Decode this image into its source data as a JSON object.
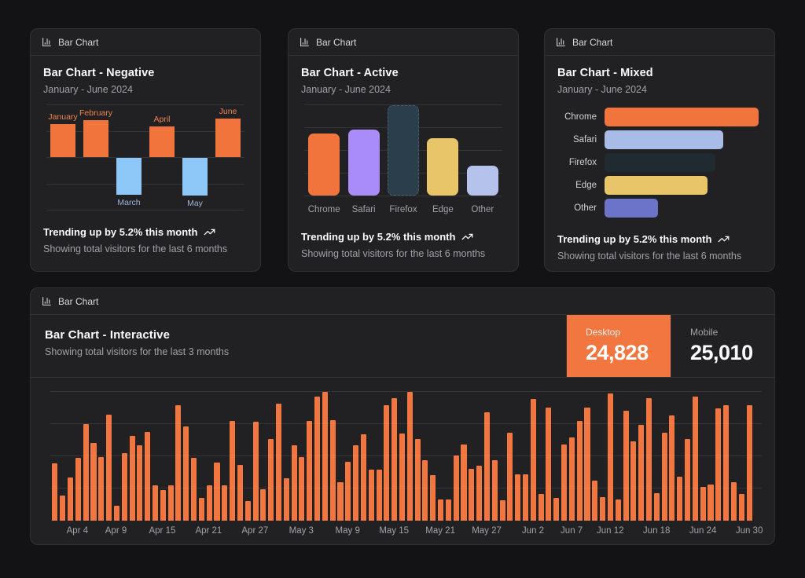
{
  "page": {
    "background": "#131316",
    "accent_orange": "#f2763f"
  },
  "cards": {
    "negative": {
      "header": "Bar Chart",
      "title": "Bar Chart - Negative",
      "subtitle": "January - June 2024",
      "footer_bold": "Trending up by 5.2% this month",
      "footer_muted": "Showing total visitors for the last 6 months"
    },
    "active": {
      "header": "Bar Chart",
      "title": "Bar Chart - Active",
      "subtitle": "January - June 2024",
      "footer_bold": "Trending up by 5.2% this month",
      "footer_muted": "Showing total visitors for the last 6 months"
    },
    "mixed": {
      "header": "Bar Chart",
      "title": "Bar Chart - Mixed",
      "subtitle": "January - June 2024",
      "footer_bold": "Trending up by 5.2% this month",
      "footer_muted": "Showing total visitors for the last 6 months"
    },
    "interactive": {
      "header": "Bar Chart",
      "title": "Bar Chart - Interactive",
      "subtitle": "Showing total visitors for the last 3 months",
      "toggles": [
        {
          "label": "Desktop",
          "value": "24,828",
          "active": true
        },
        {
          "label": "Mobile",
          "value": "25,010",
          "active": false
        }
      ]
    }
  },
  "chart_data": [
    {
      "type": "bar",
      "variant": "negative",
      "title": "Bar Chart - Negative",
      "categories": [
        "January",
        "February",
        "March",
        "April",
        "May",
        "June"
      ],
      "values": [
        186,
        205,
        -207,
        173,
        -209,
        214
      ],
      "ylim": [
        -250,
        250
      ],
      "positive_color": "#f2743d",
      "negative_color": "#8ec8f8",
      "positive_label_color": "#ef8350",
      "negative_label_color": "#9bb2d8",
      "grid": true
    },
    {
      "type": "bar",
      "variant": "vertical",
      "title": "Bar Chart - Active",
      "categories": [
        "Chrome",
        "Safari",
        "Firefox",
        "Edge",
        "Other"
      ],
      "values": [
        187,
        200,
        275,
        173,
        90
      ],
      "colors": [
        "#f2743d",
        "#a98bfa",
        "#2a3e4c",
        "#e9c56a",
        "#b5c3ec"
      ],
      "active_index": 2,
      "active_border_color": "#466272",
      "ylim": [
        0,
        290
      ],
      "grid": true
    },
    {
      "type": "bar",
      "variant": "horizontal",
      "title": "Bar Chart - Mixed",
      "categories": [
        "Chrome",
        "Safari",
        "Firefox",
        "Edge",
        "Other"
      ],
      "values": [
        275,
        200,
        187,
        173,
        90
      ],
      "colors": [
        "#f2743d",
        "#a9bce8",
        "#202b31",
        "#e9c56a",
        "#6b74c8"
      ],
      "xlim": [
        0,
        280
      ],
      "grid": false
    },
    {
      "type": "bar",
      "variant": "interactive",
      "title": "Bar Chart - Interactive",
      "series_shown": "Desktop",
      "totals": {
        "desktop": "24,828",
        "mobile": "25,010"
      },
      "x_range": [
        "2024-04-01",
        "2024-06-30"
      ],
      "values": [
        222,
        97,
        167,
        242,
        373,
        301,
        245,
        409,
        59,
        261,
        327,
        292,
        342,
        137,
        120,
        138,
        446,
        364,
        243,
        89,
        137,
        224,
        138,
        387,
        215,
        75,
        383,
        122,
        315,
        454,
        165,
        293,
        247,
        385,
        481,
        498,
        388,
        149,
        227,
        293,
        335,
        197,
        197,
        448,
        473,
        338,
        499,
        315,
        235,
        177,
        82,
        81,
        252,
        294,
        201,
        213,
        420,
        233,
        78,
        340,
        178,
        178,
        470,
        103,
        439,
        88,
        294,
        323,
        385,
        438,
        155,
        92,
        492,
        81,
        426,
        307,
        371,
        475,
        107,
        341,
        408,
        169,
        317,
        480,
        132,
        141,
        434,
        448,
        149,
        103,
        446
      ],
      "color": "#f1763f",
      "ylim": [
        0,
        500
      ],
      "grid": true,
      "ticks": [
        {
          "label": "Apr 4",
          "index": 3
        },
        {
          "label": "Apr 9",
          "index": 8
        },
        {
          "label": "Apr 15",
          "index": 14
        },
        {
          "label": "Apr 21",
          "index": 20
        },
        {
          "label": "Apr 27",
          "index": 26
        },
        {
          "label": "May 3",
          "index": 32
        },
        {
          "label": "May 9",
          "index": 38
        },
        {
          "label": "May 15",
          "index": 44
        },
        {
          "label": "May 21",
          "index": 50
        },
        {
          "label": "May 27",
          "index": 56
        },
        {
          "label": "Jun 2",
          "index": 62
        },
        {
          "label": "Jun 7",
          "index": 67
        },
        {
          "label": "Jun 12",
          "index": 72
        },
        {
          "label": "Jun 18",
          "index": 78
        },
        {
          "label": "Jun 24",
          "index": 84
        },
        {
          "label": "Jun 30",
          "index": 90
        }
      ]
    }
  ]
}
